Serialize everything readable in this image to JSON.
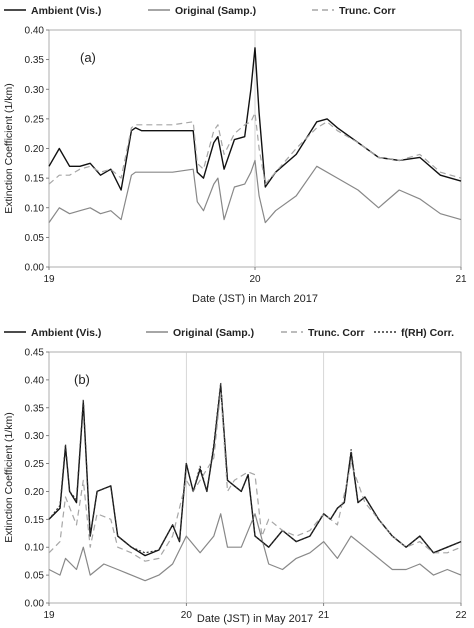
{
  "chart_data": [
    {
      "type": "line",
      "panel_label": "(a)",
      "xlabel": "Date (JST) in March 2017",
      "ylabel": "Extinction Coefficient (1/km)",
      "xlim": [
        19,
        21
      ],
      "ylim": [
        0,
        0.4
      ],
      "xticks": [
        "19",
        "20",
        "21"
      ],
      "yticks": [
        "0.00",
        "0.05",
        "0.10",
        "0.15",
        "0.20",
        "0.25",
        "0.30",
        "0.35",
        "0.40"
      ],
      "vlines": [
        20
      ],
      "grid": false,
      "legend_position": "top",
      "series": [
        {
          "name": "Ambient (Vis.)",
          "color": "#111111",
          "dash": "solid",
          "x": [
            19.0,
            19.05,
            19.1,
            19.15,
            19.2,
            19.25,
            19.3,
            19.35,
            19.4,
            19.42,
            19.45,
            19.5,
            19.6,
            19.7,
            19.72,
            19.75,
            19.8,
            19.82,
            19.85,
            19.9,
            19.95,
            19.98,
            20.0,
            20.02,
            20.05,
            20.1,
            20.2,
            20.3,
            20.35,
            20.4,
            20.5,
            20.6,
            20.7,
            20.8,
            20.9,
            21.0
          ],
          "y": [
            0.17,
            0.2,
            0.17,
            0.17,
            0.175,
            0.155,
            0.165,
            0.13,
            0.23,
            0.235,
            0.23,
            0.23,
            0.23,
            0.23,
            0.16,
            0.15,
            0.21,
            0.22,
            0.165,
            0.215,
            0.22,
            0.3,
            0.37,
            0.26,
            0.135,
            0.16,
            0.19,
            0.245,
            0.25,
            0.235,
            0.21,
            0.185,
            0.18,
            0.185,
            0.155,
            0.145
          ]
        },
        {
          "name": "Original (Samp.)",
          "color": "#888888",
          "dash": "solid",
          "x": [
            19.0,
            19.05,
            19.1,
            19.15,
            19.2,
            19.25,
            19.3,
            19.35,
            19.4,
            19.42,
            19.5,
            19.6,
            19.7,
            19.72,
            19.75,
            19.8,
            19.82,
            19.85,
            19.9,
            19.95,
            19.98,
            20.0,
            20.02,
            20.05,
            20.1,
            20.2,
            20.3,
            20.4,
            20.5,
            20.6,
            20.7,
            20.8,
            20.9,
            21.0
          ],
          "y": [
            0.075,
            0.1,
            0.09,
            0.095,
            0.1,
            0.09,
            0.095,
            0.08,
            0.155,
            0.16,
            0.16,
            0.16,
            0.165,
            0.11,
            0.095,
            0.14,
            0.15,
            0.08,
            0.135,
            0.14,
            0.16,
            0.18,
            0.12,
            0.075,
            0.095,
            0.12,
            0.17,
            0.15,
            0.13,
            0.1,
            0.13,
            0.115,
            0.09,
            0.08
          ]
        },
        {
          "name": "Trunc. Corr",
          "color": "#a6a6a6",
          "dash": "6,4",
          "x": [
            19.0,
            19.05,
            19.1,
            19.15,
            19.2,
            19.25,
            19.3,
            19.35,
            19.4,
            19.42,
            19.5,
            19.6,
            19.7,
            19.72,
            19.75,
            19.8,
            19.82,
            19.85,
            19.9,
            19.95,
            19.98,
            20.0,
            20.02,
            20.05,
            20.1,
            20.2,
            20.3,
            20.35,
            20.4,
            20.5,
            20.6,
            20.7,
            20.8,
            20.9,
            21.0
          ],
          "y": [
            0.14,
            0.155,
            0.155,
            0.165,
            0.17,
            0.16,
            0.165,
            0.15,
            0.235,
            0.24,
            0.24,
            0.24,
            0.245,
            0.175,
            0.165,
            0.23,
            0.24,
            0.19,
            0.225,
            0.24,
            0.245,
            0.26,
            0.2,
            0.14,
            0.16,
            0.2,
            0.235,
            0.245,
            0.23,
            0.21,
            0.185,
            0.18,
            0.19,
            0.16,
            0.15
          ]
        }
      ]
    },
    {
      "type": "line",
      "panel_label": "(b)",
      "xlabel": "Date (JST) in May 2017",
      "ylabel": "Extinction Coefficient (1/km)",
      "xlim": [
        19,
        22
      ],
      "ylim": [
        0,
        0.45
      ],
      "xticks": [
        "19",
        "20",
        "21",
        "22"
      ],
      "yticks": [
        "0.00",
        "0.05",
        "0.10",
        "0.15",
        "0.20",
        "0.25",
        "0.30",
        "0.35",
        "0.40",
        "0.45"
      ],
      "vlines": [
        20,
        21
      ],
      "grid": false,
      "legend_position": "top",
      "series": [
        {
          "name": "Ambient (Vis.)",
          "color": "#111111",
          "dash": "solid",
          "x": [
            19.0,
            19.08,
            19.12,
            19.15,
            19.2,
            19.25,
            19.3,
            19.35,
            19.45,
            19.5,
            19.6,
            19.7,
            19.8,
            19.9,
            19.95,
            20.0,
            20.05,
            20.1,
            20.15,
            20.2,
            20.25,
            20.3,
            20.35,
            20.4,
            20.45,
            20.5,
            20.6,
            20.7,
            20.8,
            20.9,
            21.0,
            21.05,
            21.1,
            21.15,
            21.2,
            21.25,
            21.3,
            21.4,
            21.5,
            21.6,
            21.7,
            21.8,
            21.9,
            22.0
          ],
          "y": [
            0.15,
            0.17,
            0.28,
            0.2,
            0.18,
            0.36,
            0.12,
            0.2,
            0.21,
            0.12,
            0.1,
            0.085,
            0.095,
            0.14,
            0.11,
            0.25,
            0.2,
            0.24,
            0.2,
            0.28,
            0.39,
            0.22,
            0.21,
            0.2,
            0.23,
            0.12,
            0.1,
            0.13,
            0.11,
            0.12,
            0.16,
            0.15,
            0.17,
            0.18,
            0.27,
            0.18,
            0.19,
            0.15,
            0.12,
            0.1,
            0.12,
            0.09,
            0.1,
            0.11
          ]
        },
        {
          "name": "Original (Samp.)",
          "color": "#888888",
          "dash": "solid",
          "x": [
            19.0,
            19.08,
            19.12,
            19.2,
            19.25,
            19.3,
            19.4,
            19.5,
            19.6,
            19.7,
            19.8,
            19.9,
            20.0,
            20.1,
            20.2,
            20.25,
            20.3,
            20.4,
            20.5,
            20.6,
            20.7,
            20.8,
            20.9,
            21.0,
            21.1,
            21.2,
            21.3,
            21.4,
            21.5,
            21.6,
            21.7,
            21.8,
            21.9,
            22.0
          ],
          "y": [
            0.06,
            0.05,
            0.08,
            0.06,
            0.1,
            0.05,
            0.07,
            0.06,
            0.05,
            0.04,
            0.05,
            0.07,
            0.12,
            0.09,
            0.12,
            0.16,
            0.1,
            0.1,
            0.16,
            0.07,
            0.06,
            0.08,
            0.09,
            0.11,
            0.08,
            0.12,
            0.1,
            0.08,
            0.06,
            0.06,
            0.07,
            0.05,
            0.06,
            0.05
          ]
        },
        {
          "name": "Trunc. Corr",
          "color": "#a6a6a6",
          "dash": "6,4",
          "x": [
            19.0,
            19.08,
            19.12,
            19.2,
            19.25,
            19.3,
            19.35,
            19.45,
            19.5,
            19.6,
            19.7,
            19.8,
            19.9,
            20.0,
            20.05,
            20.1,
            20.2,
            20.25,
            20.3,
            20.35,
            20.45,
            20.5,
            20.55,
            20.6,
            20.7,
            20.8,
            20.9,
            21.0,
            21.1,
            21.2,
            21.3,
            21.4,
            21.5,
            21.6,
            21.7,
            21.8,
            21.9,
            22.0
          ],
          "y": [
            0.09,
            0.11,
            0.19,
            0.14,
            0.22,
            0.1,
            0.16,
            0.15,
            0.1,
            0.09,
            0.075,
            0.08,
            0.12,
            0.22,
            0.2,
            0.22,
            0.26,
            0.38,
            0.2,
            0.22,
            0.235,
            0.23,
            0.12,
            0.15,
            0.13,
            0.12,
            0.13,
            0.16,
            0.14,
            0.25,
            0.18,
            0.15,
            0.12,
            0.1,
            0.11,
            0.09,
            0.09,
            0.1
          ]
        },
        {
          "name": "f(RH) Corr.",
          "color": "#333333",
          "dash": "2,2",
          "x": [
            19.0,
            19.08,
            19.12,
            19.15,
            19.2,
            19.25,
            19.3,
            19.35,
            19.45,
            19.5,
            19.6,
            19.7,
            19.8,
            19.9,
            19.95,
            20.0,
            20.05,
            20.1,
            20.15,
            20.2,
            20.25,
            20.3,
            20.35,
            20.4,
            20.45,
            20.5,
            20.6,
            20.7,
            20.8,
            20.9,
            21.0,
            21.05,
            21.1,
            21.15,
            21.2,
            21.25,
            21.3,
            21.4,
            21.5,
            21.6,
            21.7,
            21.8,
            21.9,
            22.0
          ],
          "y": [
            0.15,
            0.175,
            0.285,
            0.2,
            0.185,
            0.365,
            0.12,
            0.2,
            0.21,
            0.12,
            0.1,
            0.09,
            0.095,
            0.14,
            0.11,
            0.25,
            0.2,
            0.245,
            0.2,
            0.285,
            0.395,
            0.22,
            0.21,
            0.2,
            0.23,
            0.12,
            0.1,
            0.13,
            0.11,
            0.12,
            0.16,
            0.15,
            0.17,
            0.18,
            0.275,
            0.18,
            0.19,
            0.15,
            0.12,
            0.1,
            0.12,
            0.09,
            0.1,
            0.11
          ]
        }
      ]
    }
  ]
}
